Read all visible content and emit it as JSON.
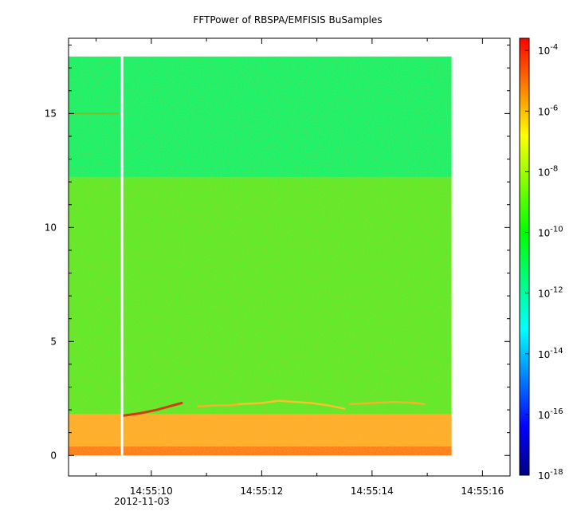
{
  "chart_data": {
    "type": "heatmap",
    "title": "FFTPower of RBSPA/EMFISIS  BuSamples",
    "xlabel": "",
    "ylabel": "",
    "x_ticks": [
      {
        "label": "14:55:10",
        "sublabel": "2012-11-03",
        "value": 10
      },
      {
        "label": "14:55:12",
        "sublabel": "",
        "value": 12
      },
      {
        "label": "14:55:14",
        "sublabel": "",
        "value": 14
      },
      {
        "label": "14:55:16",
        "sublabel": "",
        "value": 16
      }
    ],
    "x_minor_ticks": [
      9,
      11,
      13,
      15
    ],
    "xlim": [
      8.5,
      16.5
    ],
    "data_xrange": [
      8.5,
      15.44
    ],
    "gap_x": 9.47,
    "y_ticks": [
      0,
      5,
      10,
      15
    ],
    "ylim": [
      -0.9,
      18.3
    ],
    "data_yrange": [
      0,
      17.5
    ],
    "colorbar": {
      "scale": "log",
      "range_exp": [
        -18,
        -3.6
      ],
      "tick_exps": [
        -4,
        -6,
        -8,
        -10,
        -12,
        -14,
        -16,
        -18
      ],
      "colors": [
        "#00007f",
        "#0000ff",
        "#007fff",
        "#00ffff",
        "#00ff7f",
        "#00ff00",
        "#7fff00",
        "#ffff00",
        "#ff7f00",
        "#ff0000"
      ]
    },
    "bands": [
      {
        "y0": 0.0,
        "y1": 0.4,
        "color": "#ff7818",
        "label": "bottom red edge"
      },
      {
        "y0": 0.4,
        "y1": 1.8,
        "color": "#ffae2c",
        "label": "low frequency orange"
      },
      {
        "y0": 1.8,
        "y1": 12.2,
        "color": "#5aeb2a",
        "label": "mid green"
      },
      {
        "y0": 12.2,
        "y1": 17.5,
        "color": "#12f46c",
        "label": "upper teal-green"
      }
    ],
    "features": [
      {
        "name": "line-15",
        "x": [
          8.5,
          9.4
        ],
        "y": [
          15.0,
          15.0
        ],
        "color": "#7bc22a"
      },
      {
        "name": "rising-tone",
        "x": [
          9.5,
          9.8,
          10.1,
          10.4,
          10.55
        ],
        "y": [
          1.75,
          1.85,
          2.0,
          2.2,
          2.3
        ],
        "color": "#d83a10"
      },
      {
        "name": "tone-a",
        "x": [
          10.85,
          11.2,
          11.4,
          11.6
        ],
        "y": [
          2.15,
          2.2,
          2.2,
          2.25
        ],
        "color": "#f3b42a"
      },
      {
        "name": "tone-b",
        "x": [
          11.6,
          12.0,
          12.3,
          12.6,
          12.9,
          13.2,
          13.5
        ],
        "y": [
          2.25,
          2.3,
          2.4,
          2.35,
          2.3,
          2.2,
          2.05
        ],
        "color": "#f7c22a"
      },
      {
        "name": "tone-c",
        "x": [
          13.6,
          14.0,
          14.4,
          14.8,
          14.95
        ],
        "y": [
          2.25,
          2.3,
          2.35,
          2.3,
          2.25
        ],
        "color": "#f3b42a"
      }
    ]
  }
}
